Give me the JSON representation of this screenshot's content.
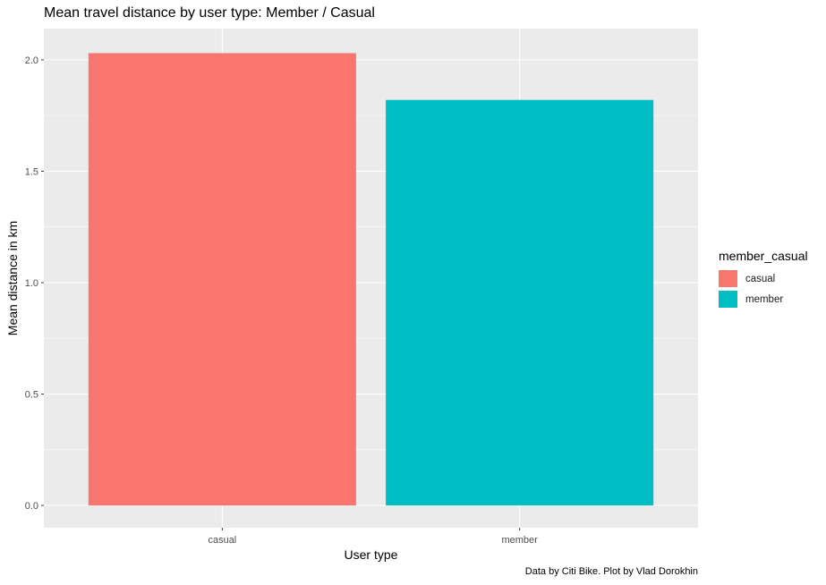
{
  "chart_data": {
    "type": "bar",
    "title": "Mean travel distance by user type: Member / Casual",
    "xlabel": "User type",
    "ylabel": "Mean distance in km",
    "categories": [
      "casual",
      "member"
    ],
    "values": [
      2.03,
      1.82
    ],
    "colors": [
      "#F8766D",
      "#00BFC4"
    ],
    "ylim": [
      -0.1,
      2.14
    ],
    "yticks": [
      0.0,
      0.5,
      1.0,
      1.5,
      2.0
    ],
    "ytick_labels": [
      "0.0",
      "0.5",
      "1.0",
      "1.5",
      "2.0"
    ],
    "grid": true,
    "panel_background": "#EBEBEB",
    "legend": {
      "title": "member_casual",
      "placement": "right",
      "entries": [
        "casual",
        "member"
      ]
    },
    "caption": "Data by Citi Bike. Plot by Vlad Dorokhin"
  }
}
